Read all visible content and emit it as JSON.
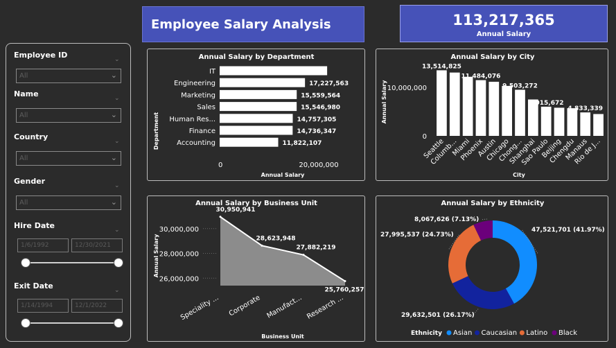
{
  "title": "Employee Salary Analysis",
  "kpi": {
    "value": "113,217,365",
    "label": "Annual Salary"
  },
  "filters": {
    "employee_id": {
      "label": "Employee ID",
      "value": "All"
    },
    "name": {
      "label": "Name",
      "value": "All"
    },
    "country": {
      "label": "Country",
      "value": "All"
    },
    "gender": {
      "label": "Gender",
      "value": "All"
    },
    "hire_date": {
      "label": "Hire Date",
      "start": "1/6/1992",
      "end": "12/30/2021"
    },
    "exit_date": {
      "label": "Exit Date",
      "start": "1/14/1994",
      "end": "12/1/2022"
    }
  },
  "colors": {
    "accent": "#4652b8",
    "asian": "#118dff",
    "caucasian": "#12239e",
    "latino": "#e66c37",
    "black": "#6b007b"
  },
  "chart_data": [
    {
      "type": "bar",
      "orientation": "horizontal",
      "title": "Annual Salary by Department",
      "xlabel": "Annual Salary",
      "ylabel": "Department",
      "categories": [
        "IT",
        "Engineering",
        "Marketing",
        "Sales",
        "Human Res...",
        "Finance",
        "Accounting"
      ],
      "values": [
        21700000,
        17227563,
        15559564,
        15546980,
        14757305,
        14736347,
        11822107
      ],
      "data_labels": [
        "",
        "17,227,563",
        "15,559,564",
        "15,546,980",
        "14,757,305",
        "14,736,347",
        "11,822,107"
      ],
      "xlim": [
        0,
        27000000
      ],
      "xticks": [
        {
          "value": 0,
          "label": "0"
        },
        {
          "value": 20000000,
          "label": "20,000,000"
        }
      ]
    },
    {
      "type": "bar",
      "title": "Annual Salary by City",
      "xlabel": "City",
      "ylabel": "Annual Salary",
      "categories": [
        "Seattle",
        "Columb...",
        "Miami",
        "Phoenix",
        "Austin",
        "Chicago",
        "Chong...",
        "Shanghai",
        "Sao Paulo",
        "Beijing",
        "Chengdu",
        "Manaus",
        "Rio de J..."
      ],
      "values": [
        13514825,
        13050000,
        12180000,
        11484076,
        11150000,
        10300000,
        9503272,
        7500000,
        6015672,
        5800000,
        5700000,
        4833339,
        4500000
      ],
      "data_labels": [
        "13,514,825",
        "",
        "",
        "11,484,076",
        "",
        "",
        "9,503,272",
        "",
        "6,015,672",
        "",
        "",
        "4,833,339",
        ""
      ],
      "ylim": [
        0,
        15000000
      ],
      "yticks": [
        {
          "value": 0,
          "label": "0"
        },
        {
          "value": 10000000,
          "label": "10,000,000"
        }
      ]
    },
    {
      "type": "area",
      "title": "Annual Salary by Business Unit",
      "xlabel": "Business Unit",
      "ylabel": "Annual Salary",
      "categories": [
        "Speciality ...",
        "Corporate",
        "Manufact...",
        "Research ..."
      ],
      "values": [
        30950941,
        28623948,
        27882219,
        25760257
      ],
      "data_labels": [
        "30,950,941",
        "28,623,948",
        "27,882,219",
        "25,760,257"
      ],
      "ylim": [
        25400000,
        31050000
      ],
      "yticks": [
        {
          "value": 26000000,
          "label": "26,000,000"
        },
        {
          "value": 28000000,
          "label": "28,000,000"
        },
        {
          "value": 30000000,
          "label": "30,000,000"
        }
      ]
    },
    {
      "type": "pie",
      "donut": true,
      "title": "Annual Salary by Ethnicity",
      "legend_title": "Ethnicity",
      "legend_position": "bottom",
      "slices": [
        {
          "name": "Asian",
          "value": 47521701,
          "label": "47,521,701 (41.97%)",
          "color": "#118dff"
        },
        {
          "name": "Caucasian",
          "value": 29632501,
          "label": "29,632,501 (26.17%)",
          "color": "#12239e"
        },
        {
          "name": "Latino",
          "value": 27995537,
          "label": "27,995,537 (24.73%)",
          "color": "#e66c37"
        },
        {
          "name": "Black",
          "value": 8067626,
          "label": "8,067,626 (7.13%)",
          "color": "#6b007b"
        }
      ]
    }
  ]
}
